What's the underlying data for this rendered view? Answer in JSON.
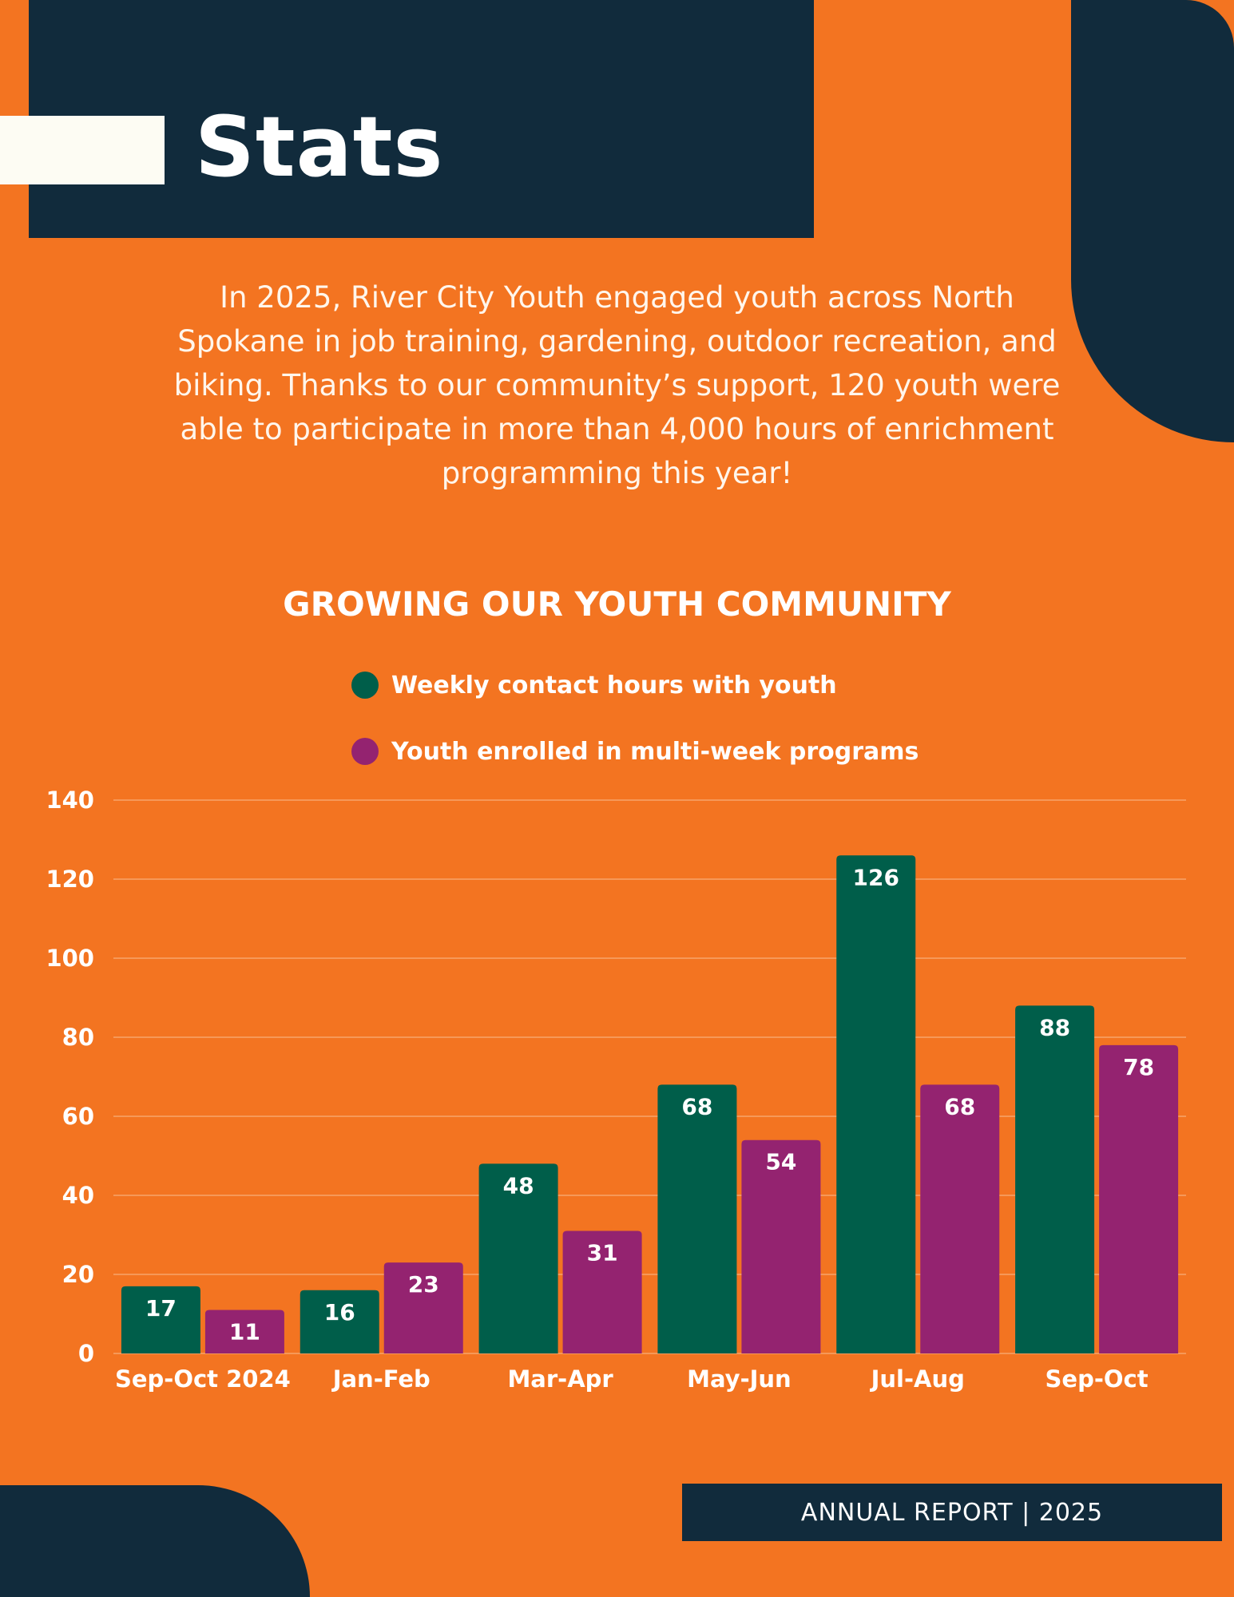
{
  "page": {
    "title": "Stats",
    "intro": "In 2025, River City Youth  engaged youth across North Spokane in job training, gardening, outdoor recreation, and biking.  Thanks to our community’s support, 120 youth were able to participate in more than 4,000 hours of enrichment programming this year!",
    "footer": "ANNUAL REPORT | 2025"
  },
  "colors": {
    "background": "#f37421",
    "navy": "#112b3c",
    "series_green": "#005e4a",
    "series_purple": "#942370"
  },
  "chart_data": {
    "type": "bar",
    "title": "GROWING OUR YOUTH COMMUNITY",
    "categories": [
      "Sep-Oct 2024",
      "Jan-Feb",
      "Mar-Apr",
      "May-Jun",
      "Jul-Aug",
      "Sep-Oct"
    ],
    "series": [
      {
        "name": "Weekly contact hours with youth",
        "values": [
          17,
          16,
          48,
          68,
          126,
          88
        ]
      },
      {
        "name": "Youth enrolled in multi-week programs",
        "values": [
          11,
          23,
          31,
          54,
          68,
          78
        ]
      }
    ],
    "ylim": [
      0,
      140
    ],
    "yticks": [
      0,
      20,
      40,
      60,
      80,
      100,
      120,
      140
    ],
    "xlabel": "",
    "ylabel": "",
    "grid": true,
    "legend": "top"
  }
}
